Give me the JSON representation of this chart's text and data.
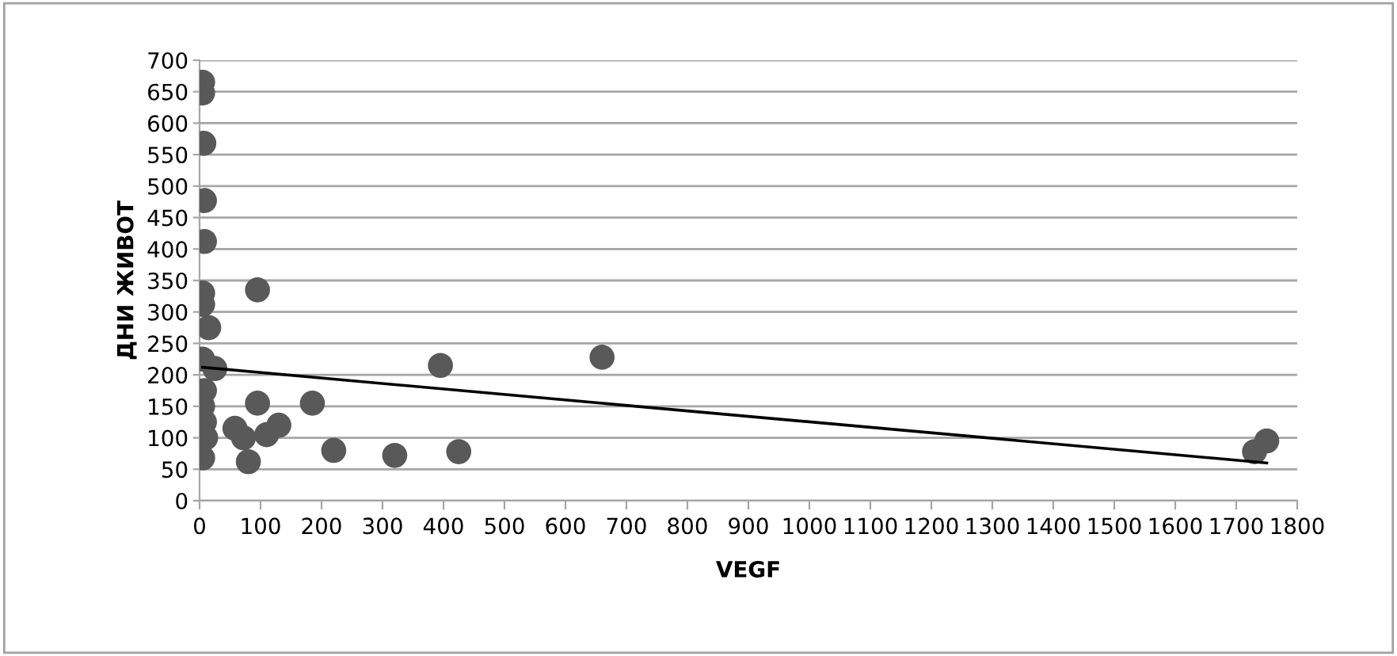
{
  "chart_data": {
    "type": "scatter",
    "xlabel": "VEGF",
    "ylabel": "ДНИ ЖИВОТ",
    "xlim": [
      0,
      1800
    ],
    "ylim": [
      0,
      700
    ],
    "xticks": [
      0,
      100,
      200,
      300,
      400,
      500,
      600,
      700,
      800,
      900,
      1000,
      1100,
      1200,
      1300,
      1400,
      1500,
      1600,
      1700,
      1800
    ],
    "yticks": [
      0,
      50,
      100,
      150,
      200,
      250,
      300,
      350,
      400,
      450,
      500,
      550,
      600,
      650,
      700
    ],
    "grid": "y",
    "legend": false,
    "series": [
      {
        "marker": "circle",
        "color": "#595959",
        "x": [
          5,
          5,
          7,
          8,
          8,
          5,
          5,
          15,
          5,
          25,
          8,
          5,
          8,
          10,
          5,
          95,
          58,
          72,
          80,
          95,
          110,
          130,
          185,
          220,
          320,
          395,
          425,
          660,
          1730,
          1750
        ],
        "values": [
          665,
          648,
          568,
          477,
          412,
          330,
          312,
          275,
          225,
          210,
          175,
          150,
          125,
          100,
          68,
          335,
          115,
          100,
          62,
          155,
          105,
          120,
          155,
          80,
          72,
          215,
          78,
          228,
          78,
          95
        ]
      },
      {
        "type": "line",
        "marker": "none",
        "color": "#000000",
        "x": [
          5,
          1750
        ],
        "values": [
          212,
          60
        ]
      }
    ]
  }
}
